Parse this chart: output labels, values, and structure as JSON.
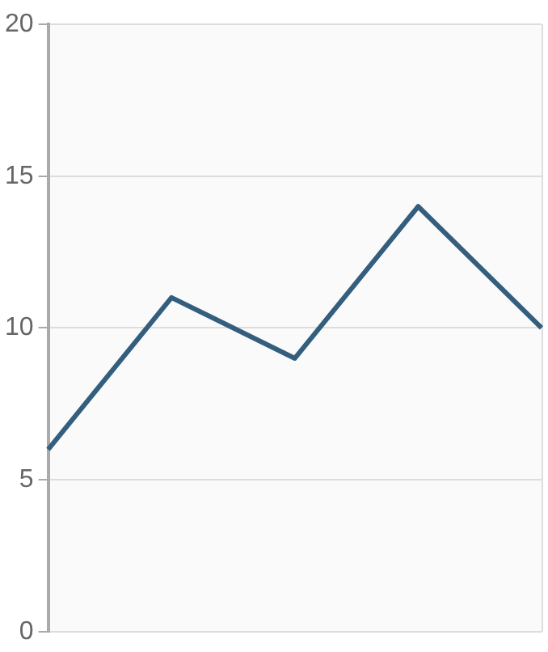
{
  "chart_data": {
    "type": "line",
    "categories": [
      null,
      null,
      null,
      null,
      null
    ],
    "series": [
      {
        "color": "#345e7e",
        "values": [
          6,
          11,
          9,
          14,
          10
        ]
      }
    ],
    "ylim": [
      0,
      20
    ],
    "yticks": [
      0,
      5,
      10,
      15,
      20
    ],
    "grid": "y",
    "legend": false,
    "marker": "none",
    "line_style": "solid",
    "tick_labels": "y"
  }
}
